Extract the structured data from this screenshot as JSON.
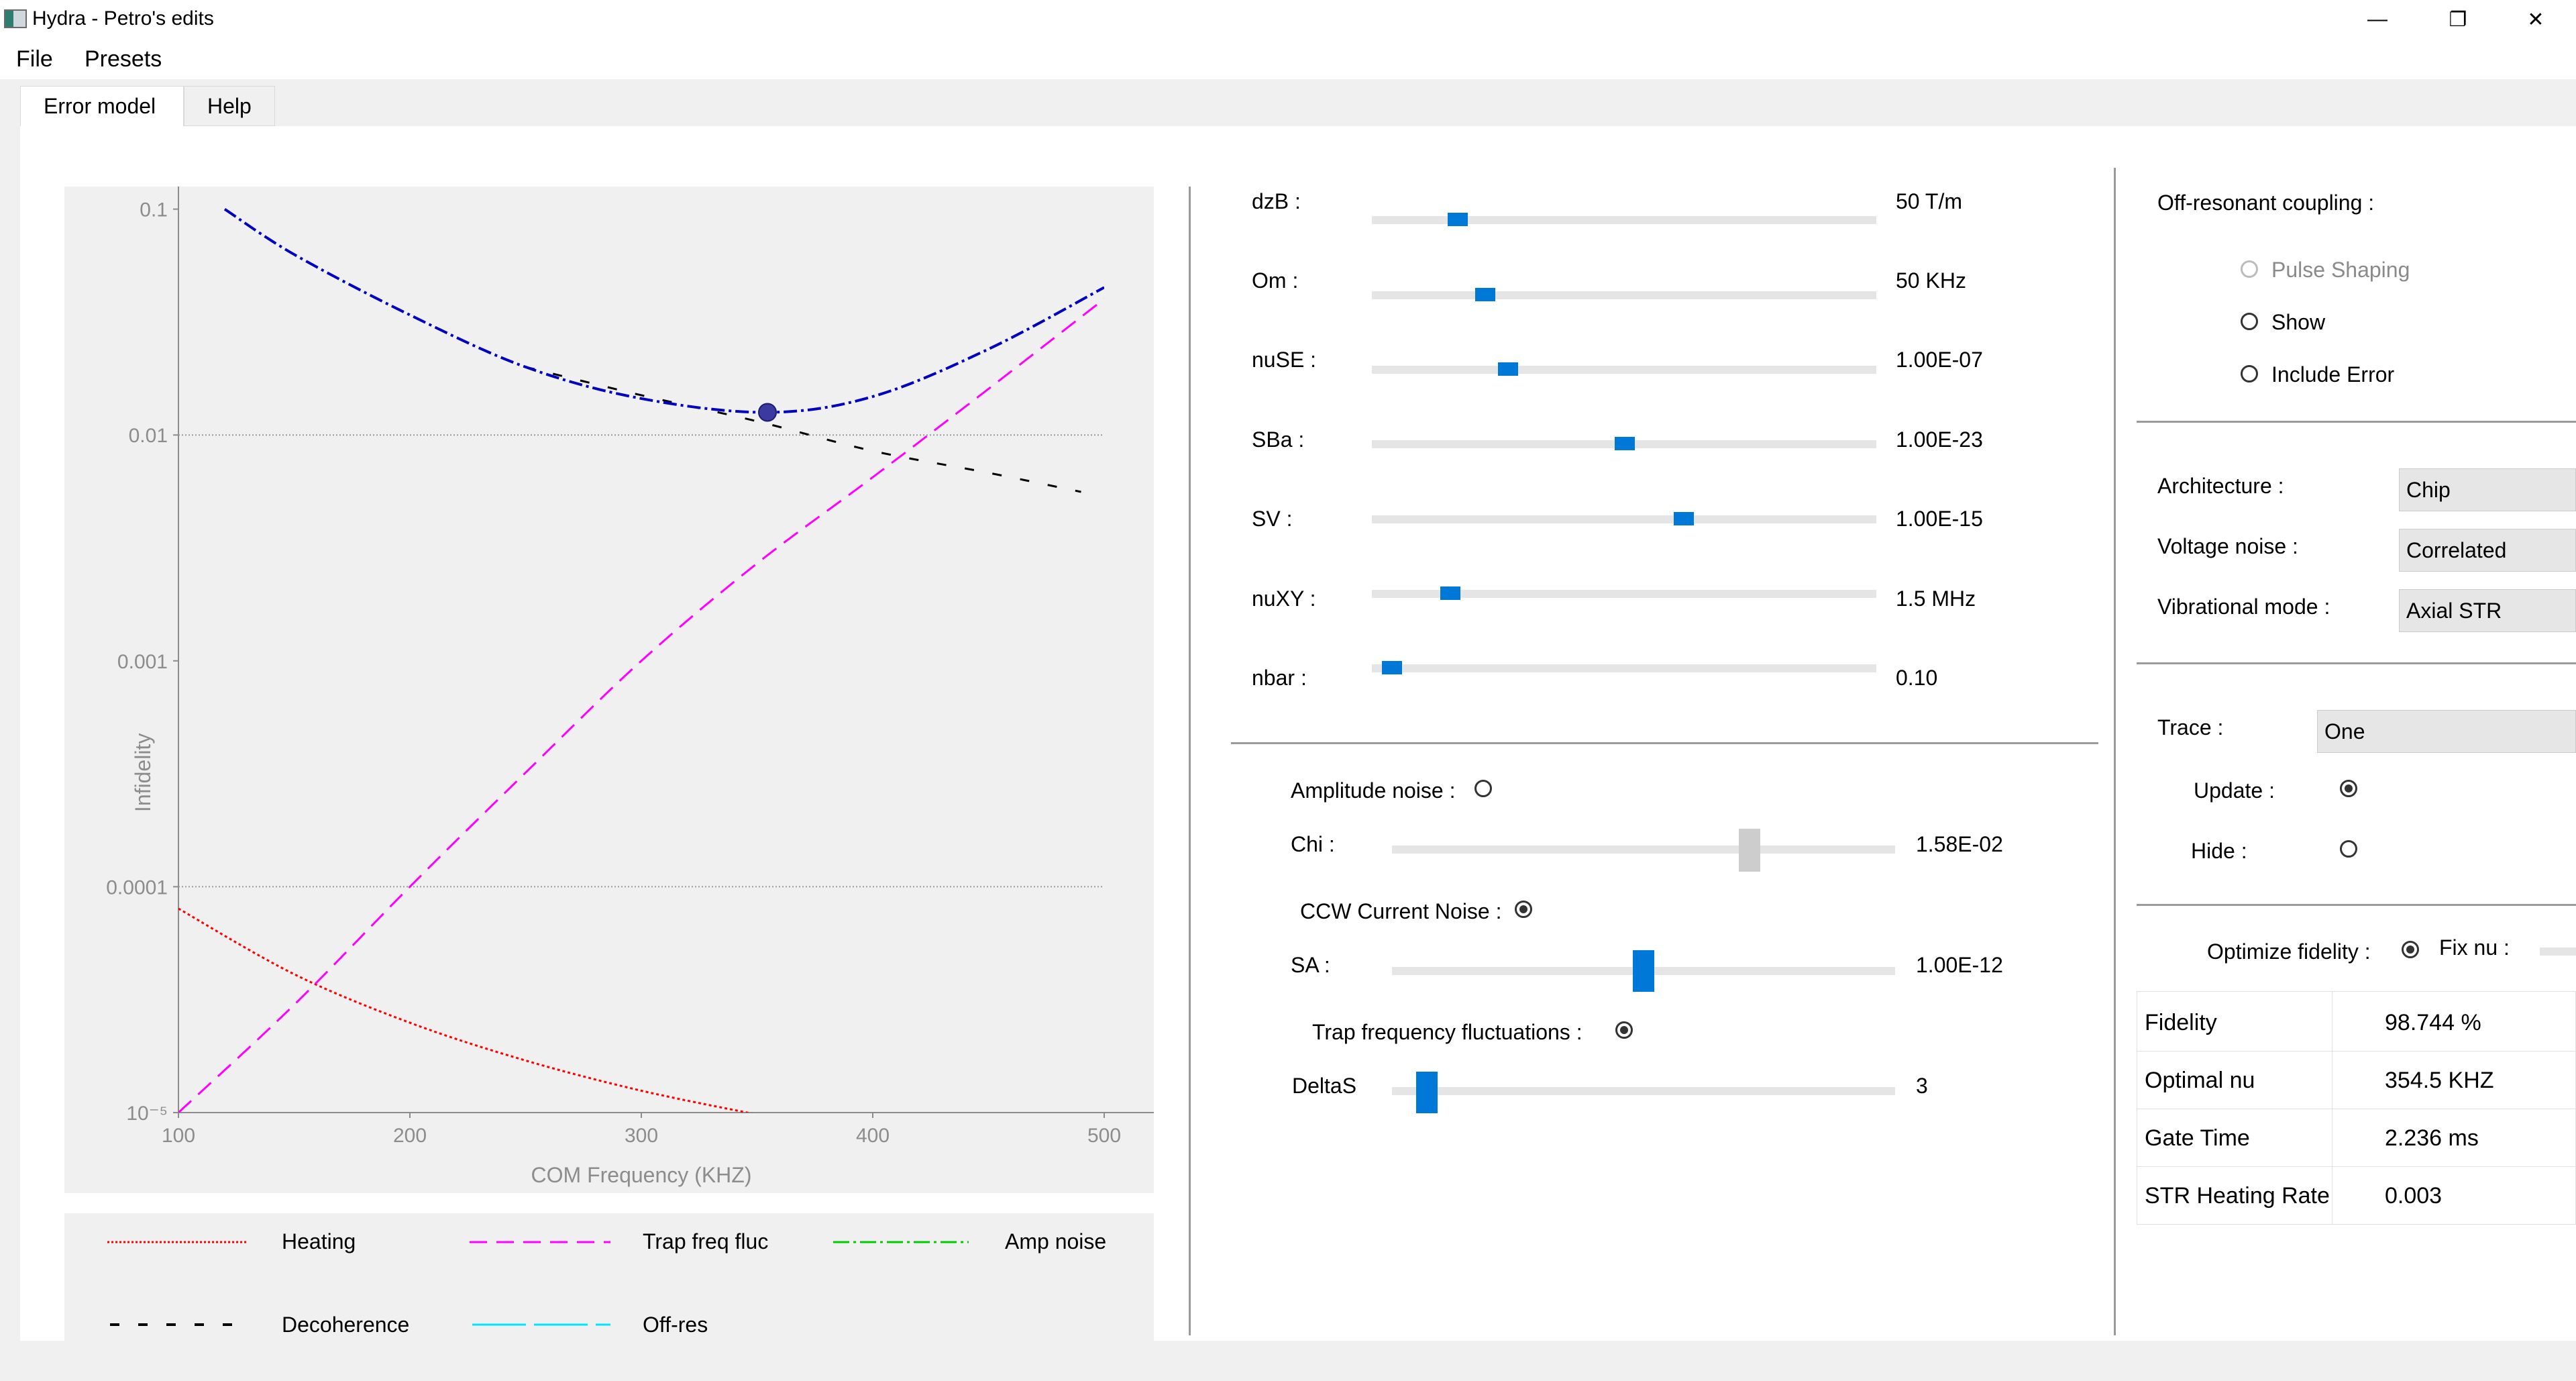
{
  "window": {
    "title": "Hydra - Petro's edits",
    "controls": {
      "minimize": "—",
      "restore": "❐",
      "close": "✕"
    }
  },
  "menu": {
    "items": [
      "File",
      "Presets"
    ]
  },
  "tabs": [
    {
      "label": "Error model",
      "active": true
    },
    {
      "label": "Help",
      "active": false
    }
  ],
  "chart_data": {
    "type": "line",
    "title": "",
    "xlabel": "COM Frequency (KHZ)",
    "ylabel": "Infidelity",
    "xlim": [
      100,
      500
    ],
    "ylim_log10": [
      -5,
      -0.9
    ],
    "y_scale": "log",
    "x_ticks": [
      100,
      200,
      300,
      400,
      500
    ],
    "x_tick_labels": [
      "100",
      "200",
      "300",
      "400",
      "500"
    ],
    "y_ticks": [
      0.1,
      0.01,
      0.001,
      0.0001,
      1e-05
    ],
    "y_tick_labels": [
      "0.1",
      "0.01",
      "0.001",
      "0.0001",
      "10⁻⁵"
    ],
    "grid": "horizontal dotted at 0.01 and 0.0001",
    "series": [
      {
        "name": "Heating",
        "color": "#ff0000",
        "style": "dotted",
        "x": [
          100,
          150,
          200,
          250,
          300,
          350
        ],
        "y": [
          8e-05,
          4.1e-05,
          2.5e-05,
          1.7e-05,
          1.25e-05,
          9.8e-06
        ]
      },
      {
        "name": "Trap freq fluc",
        "color": "#ff00ff",
        "style": "dashed",
        "x": [
          100,
          150,
          200,
          250,
          300,
          350,
          400,
          450,
          500
        ],
        "y": [
          1e-05,
          3e-05,
          0.0001,
          0.00032,
          0.001,
          0.0027,
          0.0065,
          0.016,
          0.04
        ]
      },
      {
        "name": "Amp noise",
        "color": "#00cc00",
        "style": "dash-dot",
        "x": [],
        "y": []
      },
      {
        "name": "Decoherence",
        "color": "#000000",
        "style": "dashed-wide",
        "x": [
          250,
          300,
          350,
          400,
          450,
          490
        ],
        "y": [
          0.02,
          0.015,
          0.0115,
          0.0085,
          0.0068,
          0.0056
        ]
      },
      {
        "name": "Off-res",
        "color": "#00e5ff",
        "style": "solid-dashed",
        "x": [],
        "y": []
      },
      {
        "name": "",
        "color": "#0000c0",
        "style": "dash-dot",
        "x": [
          120,
          150,
          200,
          250,
          300,
          354.5,
          400,
          450,
          500
        ],
        "y": [
          0.1,
          0.063,
          0.034,
          0.02,
          0.0145,
          0.0126,
          0.0148,
          0.024,
          0.045
        ]
      }
    ],
    "optimum_point": {
      "x": 354.5,
      "y": 0.0126,
      "color": "#3a3aa0"
    }
  },
  "legend": [
    {
      "label": "Heating",
      "color": "#ff0000",
      "dash": "3,3"
    },
    {
      "label": "Trap freq fluc",
      "color": "#ff00ff",
      "dash": "26,14"
    },
    {
      "label": "Amp noise",
      "color": "#00cc00",
      "dash": "24,6,4,6"
    },
    {
      "label": "Decoherence",
      "color": "#000000",
      "dash": "14,28"
    },
    {
      "label": "Off-res",
      "color": "#00e5ff",
      "dash": "80,12"
    }
  ],
  "params": [
    {
      "label": "dzB :",
      "value": "50 T/m",
      "pos": 0.156
    },
    {
      "label": "Om :",
      "value": "50 KHz",
      "pos": 0.213
    },
    {
      "label": "nuSE :",
      "value": "1.00E-07",
      "pos": 0.26
    },
    {
      "label": "SBa :",
      "value": "1.00E-23",
      "pos": 0.502
    },
    {
      "label": "SV :",
      "value": "1.00E-15",
      "pos": 0.623
    },
    {
      "label": "nuXY :",
      "value": "1.5 MHz",
      "pos": 0.141
    },
    {
      "label": "nbar :",
      "value": "0.10",
      "pos": 0.021
    }
  ],
  "noise": {
    "amplitude": {
      "label": "Amplitude noise :",
      "checked": false
    },
    "chi": {
      "label": "Chi :",
      "value": "1.58E-02",
      "pos": 0.72
    },
    "ccw": {
      "label": "CCW Current Noise :",
      "checked": true
    },
    "sa": {
      "label": "SA :",
      "value": "1.00E-12",
      "pos": 0.5
    },
    "trap": {
      "label": "Trap frequency fluctuations :",
      "checked": true
    },
    "deltas": {
      "label": "DeltaS",
      "value": "3",
      "pos": 0.05
    }
  },
  "right": {
    "offres_title": "Off-resonant coupling :",
    "offres_options": [
      {
        "label": "Pulse Shaping",
        "checked": false,
        "disabled": true
      },
      {
        "label": "Show",
        "checked": false,
        "disabled": false
      },
      {
        "label": "Include Error",
        "checked": false,
        "disabled": false
      }
    ],
    "architecture": {
      "label": "Architecture :",
      "value": "Chip"
    },
    "voltage_noise": {
      "label": "Voltage noise :",
      "value": "Correlated"
    },
    "vib_mode": {
      "label": "Vibrational mode :",
      "value": "Axial STR"
    },
    "trace": {
      "label": "Trace :",
      "value": "One"
    },
    "update": {
      "label": "Update :",
      "checked": true
    },
    "hide": {
      "label": "Hide :",
      "checked": false
    },
    "optimize": {
      "label": "Optimize fidelity :",
      "checked": true
    },
    "fixnu": {
      "label": "Fix nu :"
    },
    "results": [
      {
        "label": "Fidelity",
        "value": "98.744 %"
      },
      {
        "label": "Optimal nu",
        "value": "354.5 KHZ"
      },
      {
        "label": "Gate Time",
        "value": "2.236 ms"
      },
      {
        "label": "STR Heating Rate",
        "value": "0.003"
      }
    ]
  }
}
